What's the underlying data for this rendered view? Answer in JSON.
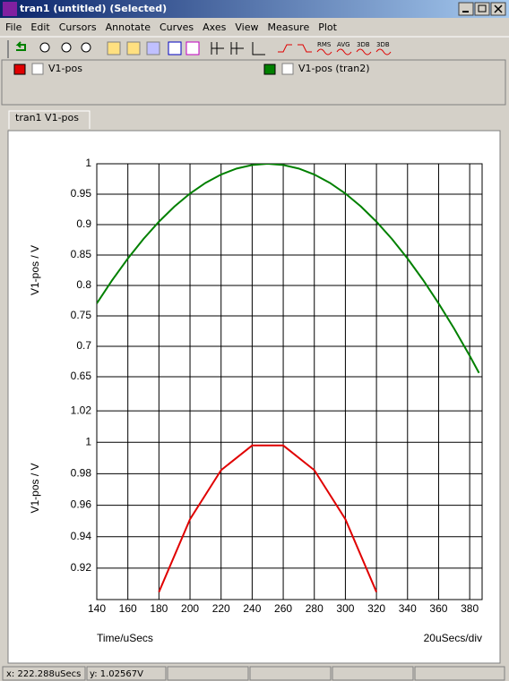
{
  "window": {
    "title": "tran1 (untitled) (Selected)"
  },
  "menu": [
    "File",
    "Edit",
    "Cursors",
    "Annotate",
    "Curves",
    "Axes",
    "View",
    "Measure",
    "Plot"
  ],
  "toolbar": {
    "labels": [
      "RMS",
      "AVG",
      "3DB",
      "3DB"
    ]
  },
  "tab": "tran1  V1-pos",
  "status": [
    "x: 222.288uSecs",
    "y: 1.02567V"
  ],
  "chart_data": [
    {
      "type": "line",
      "ylabel": "V1-pos / V",
      "grid": true,
      "x": [
        140,
        150,
        160,
        170,
        180,
        190,
        200,
        210,
        220,
        230,
        240,
        250,
        260,
        270,
        280,
        290,
        300,
        310,
        320,
        330,
        340,
        350,
        360,
        370,
        380,
        386
      ],
      "series": [
        {
          "name": "V1-pos (tran2)",
          "color": "#008000",
          "values": [
            0.7705,
            0.809,
            0.8443,
            0.8763,
            0.9048,
            0.9298,
            0.9511,
            0.9686,
            0.9823,
            0.9921,
            0.998,
            1,
            0.998,
            0.9921,
            0.9823,
            0.9686,
            0.9511,
            0.9298,
            0.9048,
            0.8763,
            0.8443,
            0.809,
            0.7705,
            0.729,
            0.6845,
            0.6563
          ]
        }
      ],
      "xlim": [
        140,
        388
      ],
      "ylim": [
        0.65,
        1
      ],
      "yticks": [
        0.65,
        0.7,
        0.75,
        0.8,
        0.85,
        0.9,
        0.95,
        1
      ]
    },
    {
      "type": "line",
      "ylabel": "V1-pos / V",
      "xlabel": "Time/uSecs",
      "x_scale": "20uSecs/div",
      "grid": true,
      "x": [
        180,
        200,
        220,
        240,
        260,
        280,
        300,
        320
      ],
      "series": [
        {
          "name": "V1-pos",
          "color": "#e00000",
          "values": [
            0.9048,
            0.9511,
            0.9823,
            0.998,
            0.998,
            0.9823,
            0.9511,
            0.9048
          ]
        }
      ],
      "xlim": [
        140,
        388
      ],
      "ylim": [
        0.9,
        1.0417
      ],
      "yticks": [
        0.92,
        0.94,
        0.96,
        0.98,
        1,
        1.02
      ],
      "xticks": [
        140,
        160,
        180,
        200,
        220,
        240,
        260,
        280,
        300,
        320,
        340,
        360,
        380
      ]
    }
  ]
}
